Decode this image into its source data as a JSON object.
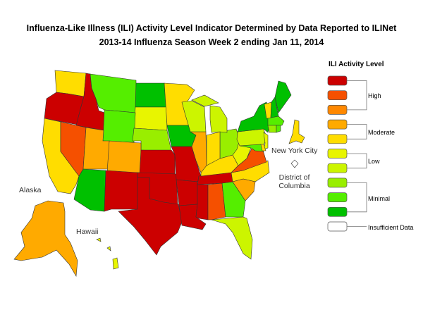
{
  "title": "Influenza-Like Illness (ILI) Activity Level Indicator Determined by Data Reported to ILINet",
  "subtitle": "2013-14  Influenza Season Week  2 ending Jan 11, 2014",
  "legend": {
    "title": "ILI Activity Level",
    "levels": [
      {
        "level": 10,
        "color": "#CC0000"
      },
      {
        "level": 9,
        "color": "#F55000"
      },
      {
        "level": 8,
        "color": "#FF8800"
      },
      {
        "level": 7,
        "color": "#FFAA00"
      },
      {
        "level": 6,
        "color": "#FFDD00"
      },
      {
        "level": 5,
        "color": "#E8F500"
      },
      {
        "level": 4,
        "color": "#CCF500"
      },
      {
        "level": 3,
        "color": "#99EE00"
      },
      {
        "level": 2,
        "color": "#55EE00"
      },
      {
        "level": 1,
        "color": "#00C000"
      }
    ],
    "groups": [
      "High",
      "Moderate",
      "Low",
      "Minimal"
    ],
    "insufficient": "Insufficient Data",
    "insufficient_color": "#FFFFFF"
  },
  "labels": {
    "alaska": "Alaska",
    "hawaii": "Hawaii",
    "nyc": "New York City",
    "dc_line1": "District of",
    "dc_line2": "Columbia"
  },
  "states": {
    "WA": 6,
    "OR": 10,
    "ID": 10,
    "MT": 2,
    "ND": 1,
    "SD": 5,
    "WY": 2,
    "NE": 3,
    "MN": 6,
    "IA": 1,
    "CA": 6,
    "NV": 9,
    "UT": 7,
    "CO": 7,
    "AZ": 1,
    "NM": 10,
    "KS": 10,
    "OK": 10,
    "TX": 10,
    "MO": 10,
    "AR": 10,
    "LA": 10,
    "MS": 10,
    "AL": 9,
    "GA": 2,
    "FL": 4,
    "TN": 10,
    "KY": 6,
    "NC": 6,
    "SC": 7,
    "VA": 9,
    "WV": 5,
    "OH": 3,
    "IN": 6,
    "IL": 7,
    "WI": 4,
    "MI": 4,
    "PA": 4,
    "NY": 1,
    "NJ": 5,
    "MD": 2,
    "DE": 6,
    "VT": 6,
    "NH": 1,
    "ME": 1,
    "MA": 2,
    "CT": 3,
    "RI": 2,
    "NYC": 6,
    "DC": 0,
    "AK": 7,
    "HI": 5
  }
}
